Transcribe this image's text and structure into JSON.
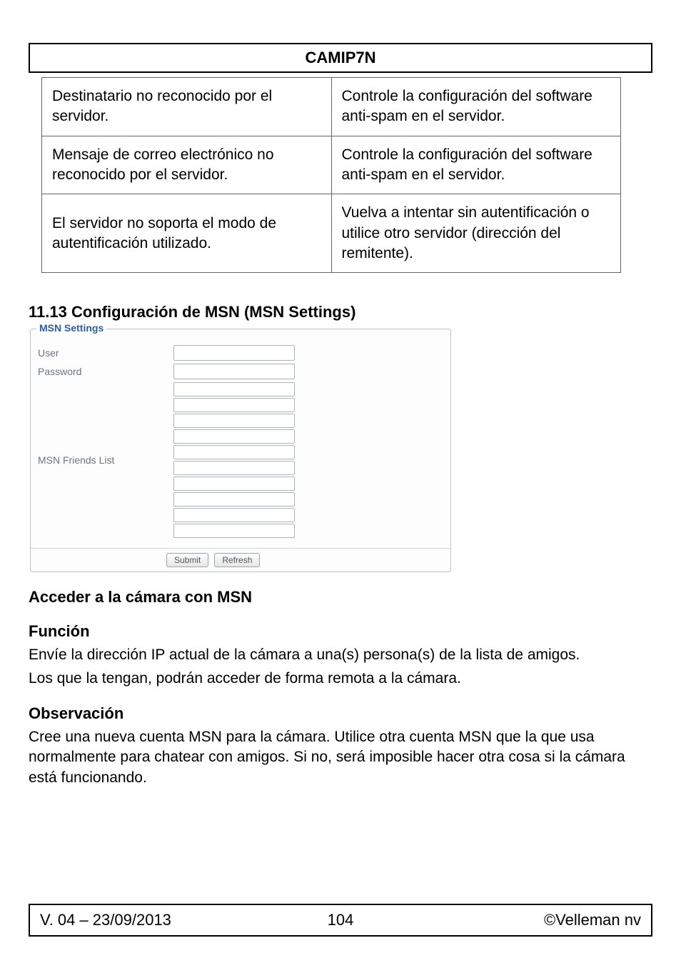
{
  "header": {
    "title": "CAMIP7N"
  },
  "trouble_table": {
    "rows": [
      {
        "problem": "Destinatario no reconocido por el servidor.",
        "solution": "Controle la configuración del software anti-spam en el servidor."
      },
      {
        "problem": "Mensaje de correo electrónico no reconocido por el servidor.",
        "solution": "Controle la configuración del software anti-spam en el servidor."
      },
      {
        "problem": "El servidor no soporta el modo de autentificación utilizado.",
        "solution": "Vuelva a intentar sin autentificación o utilice otro servidor (dirección del remitente)."
      }
    ]
  },
  "section_title": "11.13 Configuración de MSN (MSN Settings)",
  "msn_panel": {
    "legend": "MSN Settings",
    "user_label": "User",
    "password_label": "Password",
    "friends_label": "MSN Friends List",
    "friends_count": 10,
    "submit_label": "Submit",
    "refresh_label": "Refresh"
  },
  "subheadings": {
    "access": "Acceder a la cámara con MSN",
    "function": "Función",
    "function_p1": "Envíe la dirección IP actual de la cámara a una(s) persona(s) de la lista de amigos.",
    "function_p2": "Los que la tengan, podrán acceder de forma remota a la cámara.",
    "observation": "Observación",
    "observation_p": "Cree una nueva cuenta MSN para la cámara. Utilice otra cuenta MSN que la que usa normalmente para chatear con amigos. Si no, será imposible hacer otra cosa si la cámara está funcionando."
  },
  "footer": {
    "version": "V. 04 – 23/09/2013",
    "page": "104",
    "copyright": "©Velleman nv"
  }
}
